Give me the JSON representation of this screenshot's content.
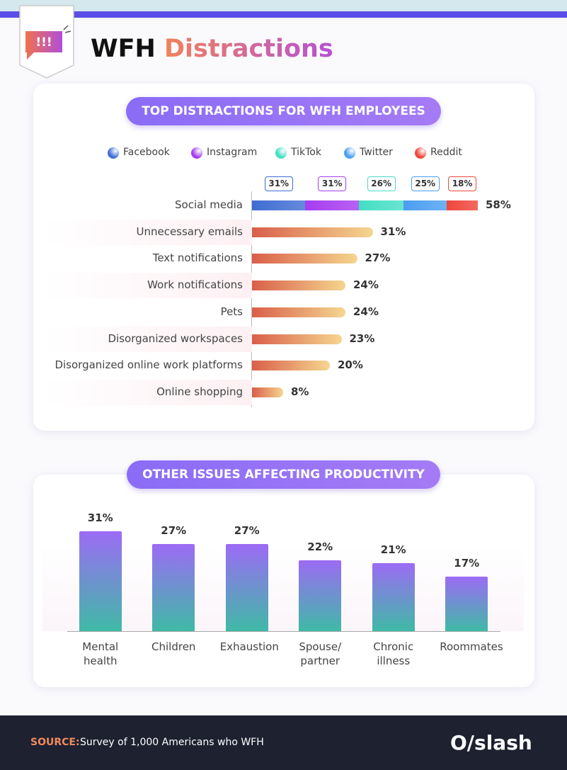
{
  "header": {
    "icon_text": "!!!",
    "title": "WFH",
    "title_highlight": "Distractions"
  },
  "chart_data": [
    {
      "type": "hbar",
      "title": "TOP DISTRACTIONS FOR WFH EMPLOYEES",
      "categories": [
        "Social media",
        "Unnecessary emails",
        "Text notifications",
        "Work notifications",
        "Pets",
        "Disorganized workspaces",
        "Disorganized online work platforms",
        "Online shopping"
      ],
      "values": [
        58,
        31,
        27,
        24,
        24,
        23,
        20,
        8
      ],
      "value_labels": [
        "58%",
        "31%",
        "27%",
        "24%",
        "24%",
        "23%",
        "20%",
        "8%"
      ],
      "color": [
        "#d95f4a",
        "#f5d68f"
      ],
      "breakdown": [
        {
          "name": "Facebook",
          "color": "#3f6dd3",
          "value": 31,
          "value_label": "31%"
        },
        {
          "name": "Instagram",
          "color": "#a63cf0",
          "value": 31,
          "value_label": "31%"
        },
        {
          "name": "TikTok",
          "color": "#44dec4",
          "value": 26,
          "value_label": "26%"
        },
        {
          "name": "Twitter",
          "color": "#4a9ef2",
          "value": 25,
          "value_label": "25%"
        },
        {
          "name": "Reddit",
          "color": "#f0453a",
          "value": 18,
          "value_label": "18%"
        }
      ]
    },
    {
      "type": "bar",
      "title": "OTHER ISSUES AFFECTING PRODUCTIVITY",
      "categories": [
        "Mental health",
        "Children",
        "Exhaustion",
        "Spouse/ partner",
        "Chronic illness",
        "Roommates"
      ],
      "values": [
        31,
        27,
        27,
        22,
        21,
        17
      ],
      "value_labels": [
        "31%",
        "27%",
        "27%",
        "22%",
        "21%",
        "17%"
      ],
      "color": [
        "#9c6bf5",
        "#3fbaa6"
      ]
    }
  ],
  "footer": {
    "source_label": "SOURCE:",
    "source": "Survey of 1,000 Americans who WFH",
    "logo": "O/slash"
  }
}
